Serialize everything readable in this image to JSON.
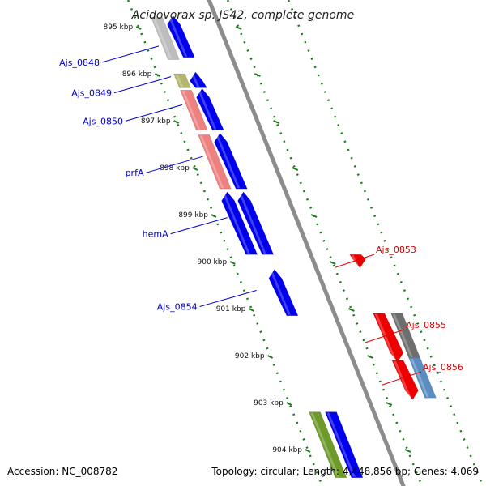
{
  "title": "Acidovorax sp. JS42, complete genome",
  "accession_text": "Accession: NC_008782",
  "topology_text": "Topology: circular; Length: 4,448,856 bp; Genes: 4,069",
  "colors": {
    "blue": "#0000ee",
    "grey": "#bdbdbd",
    "dark_grey": "#6e6e6e",
    "olive": "#b5b56e",
    "salmon": "#ee8080",
    "red": "#ee0000",
    "steel_blue": "#5a8ec0",
    "green": "#6e9a2a",
    "backbone": "#8c8c8c",
    "tick_green": "#1a7a1a",
    "label_blue": "#0000cc",
    "label_red": "#dd0000"
  },
  "ticks": [
    {
      "kbp": 895,
      "label": "895 kbp"
    },
    {
      "kbp": 896,
      "label": "896 kbp"
    },
    {
      "kbp": 897,
      "label": "897 kbp"
    },
    {
      "kbp": 898,
      "label": "898 kbp"
    },
    {
      "kbp": 899,
      "label": "899 kbp"
    },
    {
      "kbp": 900,
      "label": "900 kbp"
    },
    {
      "kbp": 901,
      "label": "901 kbp"
    },
    {
      "kbp": 902,
      "label": "902 kbp"
    },
    {
      "kbp": 903,
      "label": "903 kbp"
    },
    {
      "kbp": 904,
      "label": "904 kbp"
    }
  ],
  "genes": [
    {
      "strand": "minus",
      "lane": 1,
      "start_kbp": 894.8,
      "end_kbp": 895.7,
      "color": "#bdbdbd",
      "arrow": false
    },
    {
      "strand": "minus",
      "lane": 0,
      "start_kbp": 894.8,
      "end_kbp": 895.65,
      "color": "#0000ee",
      "arrow": true
    },
    {
      "strand": "minus",
      "lane": 1,
      "start_kbp": 896.0,
      "end_kbp": 896.3,
      "color": "#b5b56e",
      "arrow": false
    },
    {
      "strand": "minus",
      "lane": 0,
      "start_kbp": 896.0,
      "end_kbp": 896.3,
      "color": "#0000ee",
      "arrow": true
    },
    {
      "strand": "minus",
      "lane": 1,
      "start_kbp": 896.35,
      "end_kbp": 897.2,
      "color": "#ee8080",
      "arrow": false
    },
    {
      "strand": "minus",
      "lane": 0,
      "start_kbp": 896.35,
      "end_kbp": 897.2,
      "color": "#0000ee",
      "arrow": true
    },
    {
      "strand": "minus",
      "lane": 1,
      "start_kbp": 897.3,
      "end_kbp": 898.45,
      "color": "#ee8080",
      "arrow": false
    },
    {
      "strand": "minus",
      "lane": 0,
      "start_kbp": 897.3,
      "end_kbp": 898.45,
      "color": "#0000ee",
      "arrow": true
    },
    {
      "strand": "minus",
      "lane": 1,
      "start_kbp": 898.55,
      "end_kbp": 899.85,
      "color": "#0000ee",
      "arrow": true
    },
    {
      "strand": "minus",
      "lane": 0,
      "start_kbp": 898.55,
      "end_kbp": 899.85,
      "color": "#0000ee",
      "arrow": true
    },
    {
      "strand": "minus",
      "lane": 0,
      "start_kbp": 900.2,
      "end_kbp": 901.15,
      "color": "#0000ee",
      "arrow": true
    },
    {
      "strand": "plus",
      "lane": 0,
      "start_kbp": 899.85,
      "end_kbp": 900.1,
      "color": "#ee0000",
      "arrow": true
    },
    {
      "strand": "plus",
      "lane": 0,
      "start_kbp": 901.1,
      "end_kbp": 902.1,
      "color": "#ee0000",
      "arrow": true
    },
    {
      "strand": "plus",
      "lane": 0,
      "start_kbp": 902.1,
      "end_kbp": 902.9,
      "color": "#ee0000",
      "arrow": true
    },
    {
      "strand": "plus",
      "lane": 1,
      "start_kbp": 901.1,
      "end_kbp": 902.05,
      "color": "#6e6e6e",
      "arrow": false
    },
    {
      "strand": "plus",
      "lane": 1,
      "start_kbp": 902.05,
      "end_kbp": 902.9,
      "color": "#5a8ec0",
      "arrow": false
    },
    {
      "strand": "minus",
      "lane": 1,
      "start_kbp": 903.2,
      "end_kbp": 904.6,
      "color": "#6e9a2a",
      "arrow": false
    },
    {
      "strand": "minus",
      "lane": 0,
      "start_kbp": 903.2,
      "end_kbp": 904.6,
      "color": "#0000ee",
      "arrow": false
    }
  ],
  "gene_labels": [
    {
      "text": "Ajs_0848",
      "side": "left",
      "kbp": 895.55,
      "color": "#0000cc"
    },
    {
      "text": "Ajs_0849",
      "side": "left",
      "kbp": 896.2,
      "color": "#0000cc"
    },
    {
      "text": "Ajs_0850",
      "side": "left",
      "kbp": 896.8,
      "color": "#0000cc"
    },
    {
      "text": "prfA",
      "side": "left",
      "kbp": 897.9,
      "color": "#0000cc"
    },
    {
      "text": "hemA",
      "side": "left",
      "kbp": 899.2,
      "color": "#0000cc"
    },
    {
      "text": "Ajs_0854",
      "side": "left",
      "kbp": 900.75,
      "color": "#0000cc"
    },
    {
      "text": "Ajs_0853",
      "side": "right",
      "kbp": 899.95,
      "color": "#dd0000"
    },
    {
      "text": "Ajs_0855",
      "side": "right",
      "kbp": 901.55,
      "color": "#dd0000"
    },
    {
      "text": "Ajs_0856",
      "side": "right",
      "kbp": 902.45,
      "color": "#dd0000"
    }
  ]
}
